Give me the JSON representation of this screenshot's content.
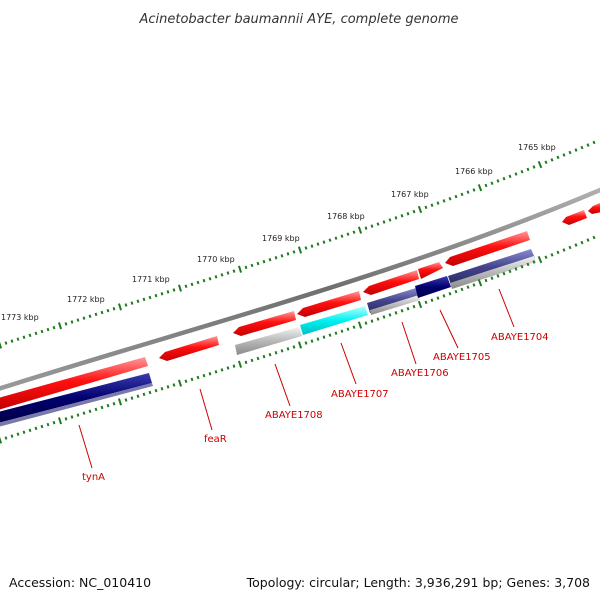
{
  "title": "Acinetobacter baumannii AYE, complete genome",
  "ticks": [
    {
      "label": "1773 kbp"
    },
    {
      "label": "1772 kbp"
    },
    {
      "label": "1771 kbp"
    },
    {
      "label": "1770 kbp"
    },
    {
      "label": "1769 kbp"
    },
    {
      "label": "1768 kbp"
    },
    {
      "label": "1767 kbp"
    },
    {
      "label": "1766 kbp"
    },
    {
      "label": "1765 kbp"
    }
  ],
  "genes": [
    {
      "label": "tynA"
    },
    {
      "label": "feaR"
    },
    {
      "label": "ABAYE1708"
    },
    {
      "label": "ABAYE1707"
    },
    {
      "label": "ABAYE1706"
    },
    {
      "label": "ABAYE1705"
    },
    {
      "label": "ABAYE1704"
    }
  ],
  "footer": {
    "accession": "Accession: NC_010410",
    "stats": "Topology: circular; Length: 3,936,291 bp; Genes: 3,708"
  },
  "colors": {
    "backbone": "#808080",
    "feature_red": "#ff0000",
    "feature_navy": "#000080",
    "feature_cyan": "#00ffff",
    "feature_gray": "#a9a9a9",
    "feature_slate": "#4a4a8a",
    "tick_green": "#1f7a1f",
    "label_red": "#cc0000"
  }
}
